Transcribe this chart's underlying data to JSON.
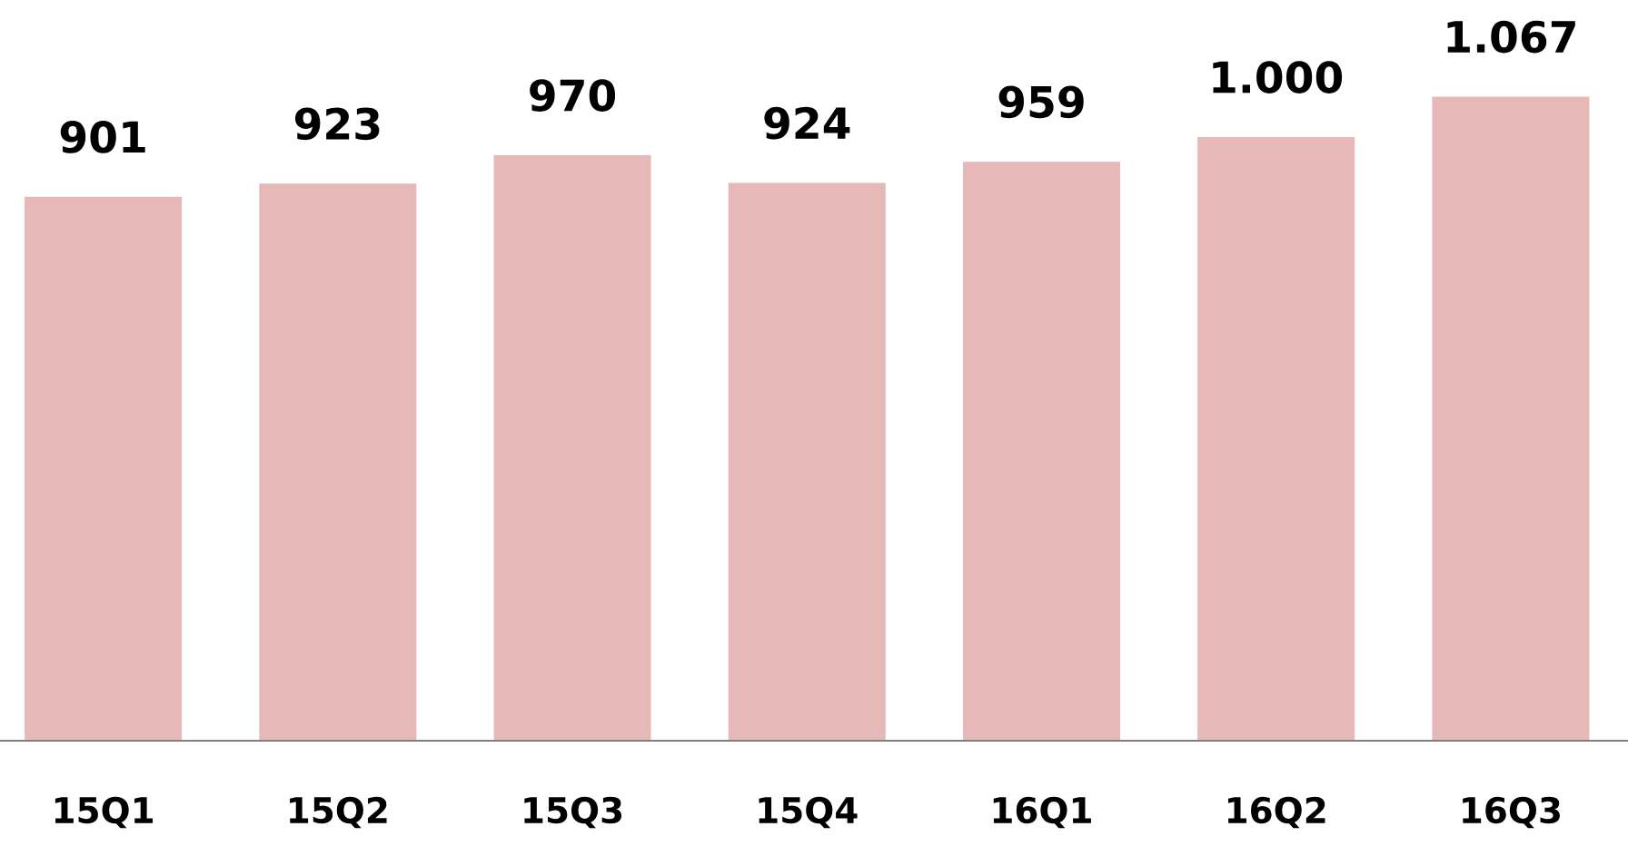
{
  "chart_data": {
    "type": "bar",
    "categories": [
      "15Q1",
      "15Q2",
      "15Q3",
      "15Q4",
      "16Q1",
      "16Q2",
      "16Q3"
    ],
    "values": [
      901,
      923,
      970,
      924,
      959,
      1000,
      1067
    ],
    "value_labels": [
      "901",
      "923",
      "970",
      "924",
      "959",
      "1.000",
      "1.067"
    ],
    "color": "#e6b8b7",
    "tick_labels": "x",
    "grid": false,
    "legend": false
  }
}
